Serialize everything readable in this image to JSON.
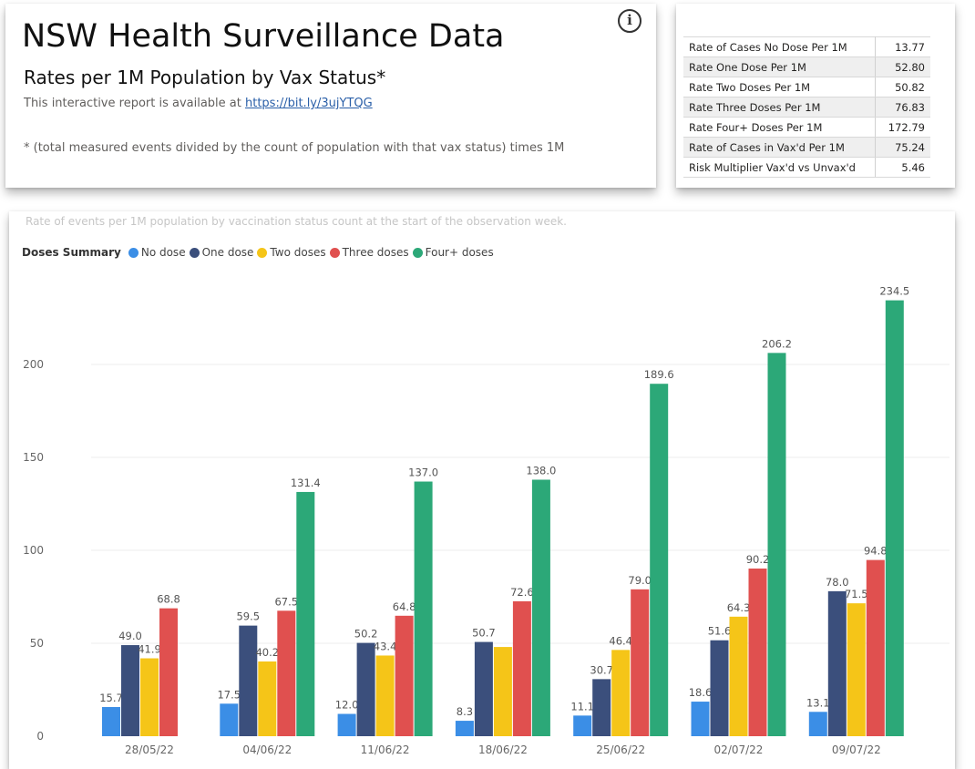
{
  "header": {
    "title": "NSW Health Surveillance Data",
    "subtitle": "Rates per 1M Population by Vax Status*",
    "report_prefix": "This interactive report is available at ",
    "report_link": "https://bit.ly/3ujYTQG",
    "footnote": "* (total measured events divided by the count of population with that vax status) times 1M",
    "info_icon": "i"
  },
  "stats": [
    {
      "label": "Rate of Cases No Dose Per 1M",
      "value": "13.77"
    },
    {
      "label": "Rate One Dose Per 1M",
      "value": "52.80"
    },
    {
      "label": "Rate Two Doses Per 1M",
      "value": "50.82"
    },
    {
      "label": "Rate Three Doses Per 1M",
      "value": "76.83"
    },
    {
      "label": "Rate Four+ Doses Per 1M",
      "value": "172.79"
    },
    {
      "label": "Rate of Cases in Vax'd Per 1M",
      "value": "75.24"
    },
    {
      "label": "Risk Multiplier Vax'd vs Unvax'd",
      "value": "5.46"
    }
  ],
  "chart_data": {
    "type": "bar",
    "title": "Rate of events per 1M population by vaccination status count at the start of the observation week.",
    "legend_title": "Doses Summary",
    "legend_position": "top-left",
    "categories": [
      "28/05/22",
      "04/06/22",
      "11/06/22",
      "18/06/22",
      "25/06/22",
      "02/07/22",
      "09/07/22"
    ],
    "series": [
      {
        "name": "No dose",
        "color": "#3b8ee6",
        "values": [
          15.7,
          17.5,
          12.0,
          8.3,
          11.1,
          18.6,
          13.1
        ]
      },
      {
        "name": "One dose",
        "color": "#3b4f7c",
        "values": [
          49.0,
          59.5,
          50.2,
          50.7,
          30.7,
          51.6,
          78.0
        ]
      },
      {
        "name": "Two doses",
        "color": "#f5c518",
        "values": [
          41.9,
          40.2,
          43.4,
          48.0,
          46.4,
          64.3,
          71.5
        ]
      },
      {
        "name": "Three doses",
        "color": "#e0504f",
        "values": [
          68.8,
          67.5,
          64.8,
          72.6,
          79.0,
          90.2,
          94.8
        ]
      },
      {
        "name": "Four+ doses",
        "color": "#2ca878",
        "values": [
          null,
          131.4,
          137.0,
          138.0,
          189.6,
          206.2,
          234.5
        ]
      }
    ],
    "data_labels": [
      [
        "15.7",
        "49.0",
        "41.9",
        "68.8",
        ""
      ],
      [
        "17.5",
        "59.5",
        "40.2",
        "67.5",
        "131.4"
      ],
      [
        "12.0",
        "50.2",
        "43.4",
        "64.8",
        "137.0"
      ],
      [
        "8.3",
        "50.7",
        "",
        "72.6",
        "138.0"
      ],
      [
        "11.1",
        "30.7",
        "46.4",
        "79.0",
        "189.6"
      ],
      [
        "18.6",
        "51.6",
        "64.3",
        "90.2",
        "206.2"
      ],
      [
        "13.1",
        "78.0",
        "71.5",
        "94.8",
        "234.5"
      ]
    ],
    "y_ticks": [
      0,
      50,
      100,
      150,
      200
    ],
    "ylim": [
      0,
      240
    ],
    "grid": true
  }
}
